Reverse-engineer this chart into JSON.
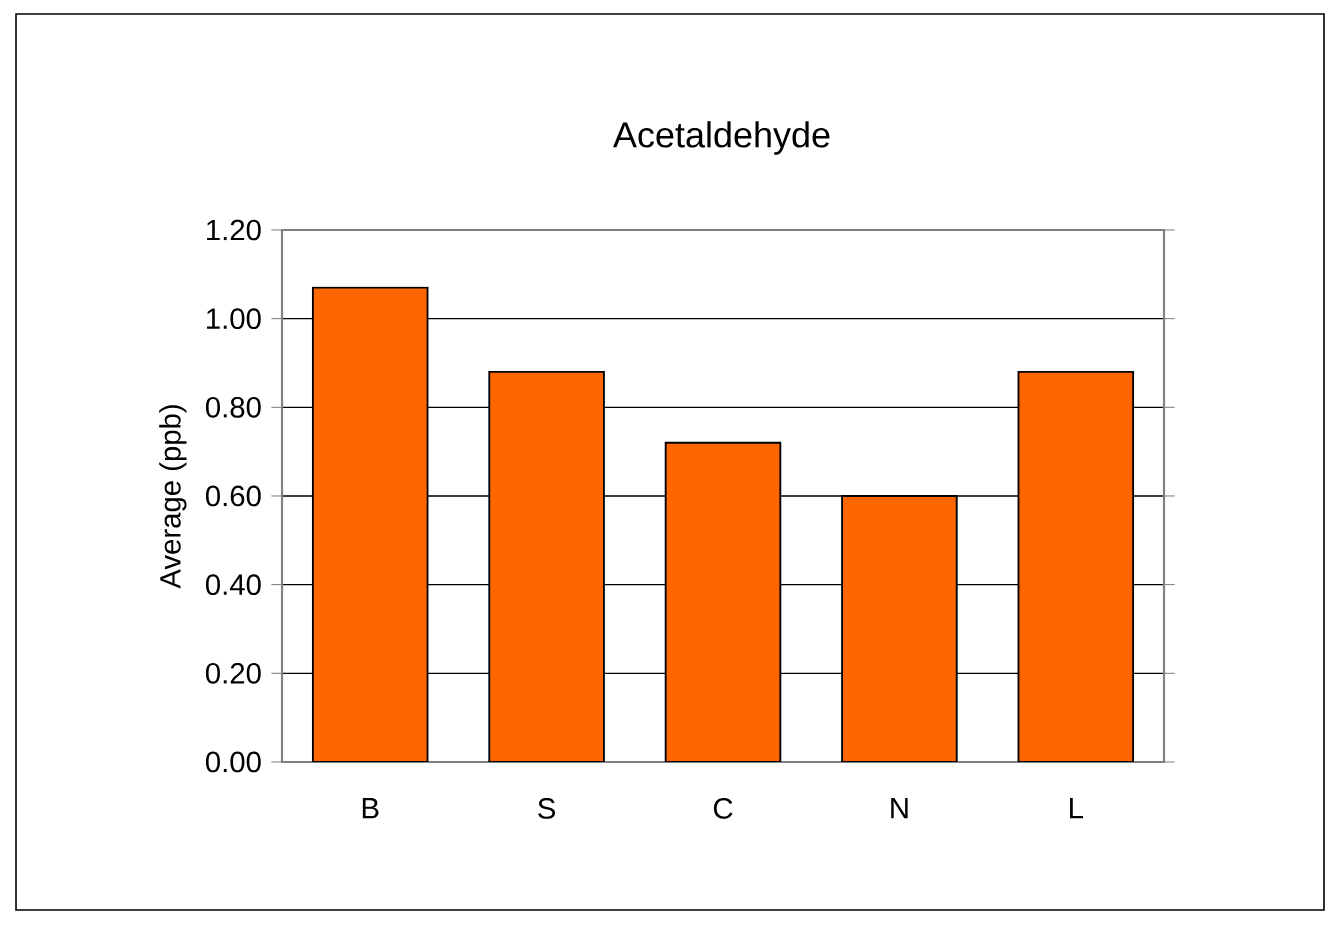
{
  "chart_data": {
    "type": "bar",
    "title": "Acetaldehyde",
    "ylabel": "Average (ppb)",
    "categories": [
      "B",
      "S",
      "C",
      "N",
      "L"
    ],
    "values": [
      1.07,
      0.88,
      0.72,
      0.6,
      0.88
    ],
    "color": "#ff6600",
    "ylim": [
      0,
      1.2
    ],
    "yticks": [
      {
        "value": 0,
        "label": "0.00"
      },
      {
        "value": 0.2,
        "label": "0.20"
      },
      {
        "value": 0.4,
        "label": "0.40"
      },
      {
        "value": 0.6,
        "label": "0.60"
      },
      {
        "value": 0.8,
        "label": "0.80"
      },
      {
        "value": 1.0,
        "label": "1.00"
      },
      {
        "value": 1.2,
        "label": "1.20"
      }
    ],
    "grid": "y"
  }
}
